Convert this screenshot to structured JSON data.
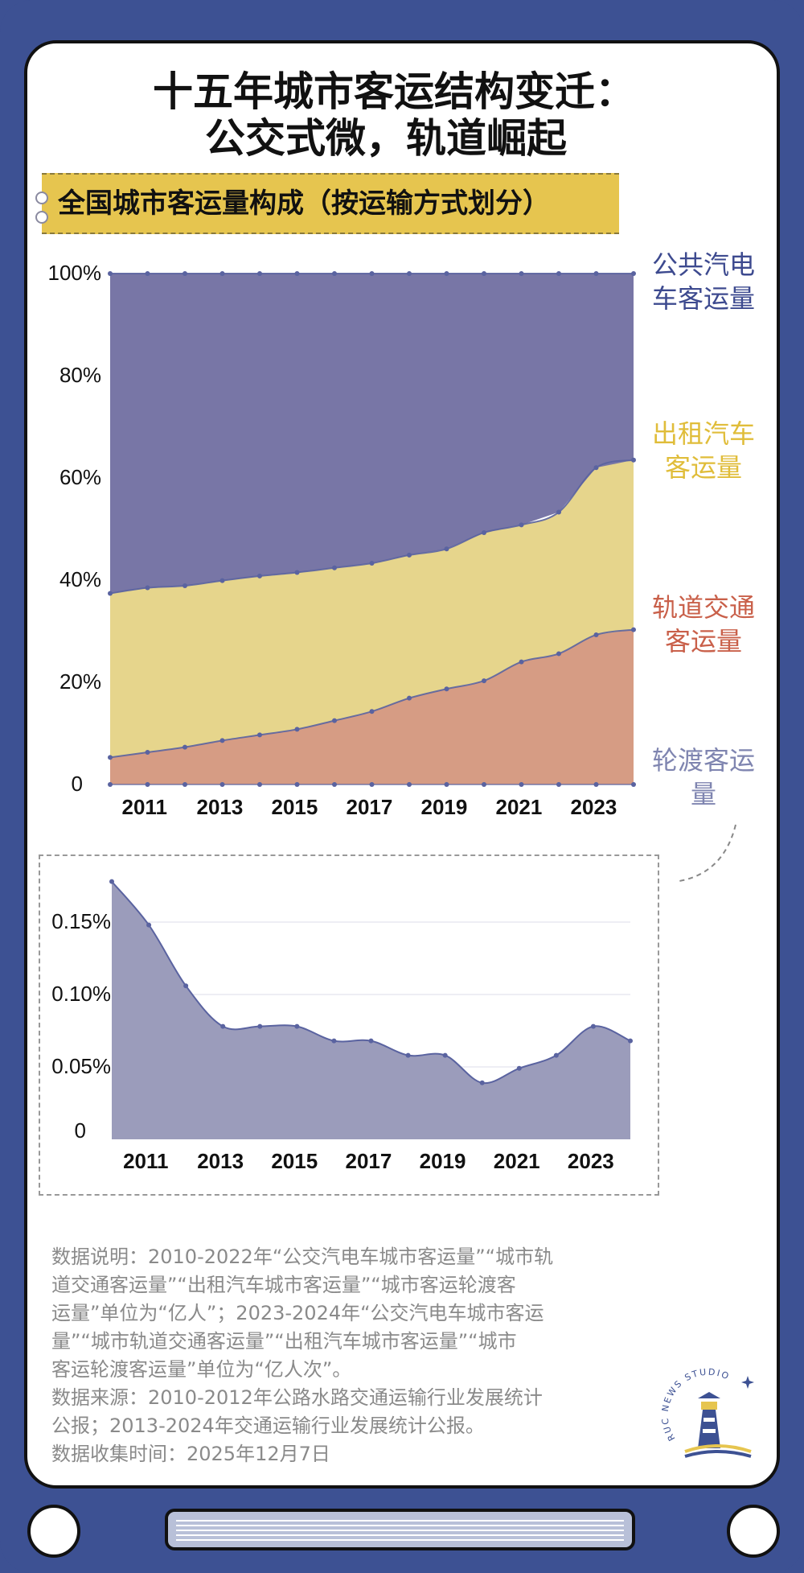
{
  "header": {
    "title_line1": "十五年城市客运结构变迁：",
    "title_line2": "公交式微，轨道崛起",
    "subtitle": "全国城市客运量构成（按运输方式划分）"
  },
  "colors": {
    "background": "#3d5193",
    "bus": "#7876a6",
    "taxi": "#e6d58c",
    "rail": "#d69c84",
    "ferry": "#9b9cbb",
    "line": "#5a63a0",
    "subtitle_band": "#e6c54f"
  },
  "legend": [
    {
      "label_line1": "公共汽电",
      "label_line2": "车客运量",
      "color": "#3d4a8f"
    },
    {
      "label_line1": "出租汽车",
      "label_line2": "客运量",
      "color": "#e0bd3a"
    },
    {
      "label_line1": "轨道交通",
      "label_line2": "客运量",
      "color": "#c9604a"
    },
    {
      "label_line1": "轮渡客运",
      "label_line2": "量",
      "color": "#7f85b0"
    }
  ],
  "chart_data": [
    {
      "type": "area",
      "stacked": true,
      "title": "全国城市客运量构成（按运输方式划分）",
      "x": [
        2010,
        2011,
        2012,
        2013,
        2014,
        2015,
        2016,
        2017,
        2018,
        2019,
        2020,
        2021,
        2022,
        2023,
        2024
      ],
      "x_tick_labels": [
        "2011",
        "2013",
        "2015",
        "2017",
        "2019",
        "2021",
        "2023"
      ],
      "y_tick_labels": [
        "0",
        "20%",
        "40%",
        "60%",
        "80%",
        "100%"
      ],
      "ylim": [
        0,
        100
      ],
      "series": [
        {
          "name": "轨道交通客运量",
          "cumulative_top": [
            5.3,
            6.3,
            7.3,
            8.6,
            9.7,
            10.8,
            12.5,
            14.3,
            16.9,
            18.7,
            20.3,
            24.0,
            25.6,
            29.3,
            30.3
          ]
        },
        {
          "name": "出租汽车客运量",
          "cumulative_top": [
            37.4,
            38.5,
            38.9,
            39.9,
            40.8,
            41.5,
            42.4,
            43.3,
            44.9,
            46.1,
            49.3,
            50.8,
            53.3,
            62.0,
            63.5
          ]
        },
        {
          "name": "公共汽电车客运量",
          "cumulative_top": [
            100,
            100,
            100,
            100,
            100,
            100,
            100,
            100,
            100,
            100,
            100,
            100,
            100,
            100,
            100
          ]
        }
      ]
    },
    {
      "type": "area",
      "title": "轮渡客运量",
      "x": [
        2010,
        2011,
        2012,
        2013,
        2014,
        2015,
        2016,
        2017,
        2018,
        2019,
        2020,
        2021,
        2022,
        2023,
        2024
      ],
      "x_tick_labels": [
        "2011",
        "2013",
        "2015",
        "2017",
        "2019",
        "2021",
        "2023"
      ],
      "y_tick_labels": [
        "0",
        "0.05%",
        "0.10%",
        "0.15%"
      ],
      "ylim": [
        0,
        0.18
      ],
      "series": [
        {
          "name": "轮渡客运量",
          "values": [
            0.178,
            0.148,
            0.106,
            0.078,
            0.078,
            0.078,
            0.068,
            0.068,
            0.058,
            0.058,
            0.039,
            0.049,
            0.058,
            0.078,
            0.068
          ]
        }
      ]
    }
  ],
  "notes": {
    "line1": "数据说明：2010-2022年“公交汽电车城市客运量”“城市轨",
    "line2": "道交通客运量”“出租汽车城市客运量”“城市客运轮渡客",
    "line3": "运量”单位为“亿人”；2023-2024年“公交汽电车城市客运",
    "line4": "量”“城市轨道交通客运量”“出租汽车城市客运量”“城市",
    "line5": "客运轮渡客运量”单位为“亿人次”。",
    "line6": "数据来源：2010-2012年公路水路交通运输行业发展统计",
    "line7": "公报；2013-2024年交通运输行业发展统计公报。",
    "line8": "数据收集时间：2025年12月7日"
  },
  "logo": {
    "text": "RUC NEWS STUDIO"
  }
}
